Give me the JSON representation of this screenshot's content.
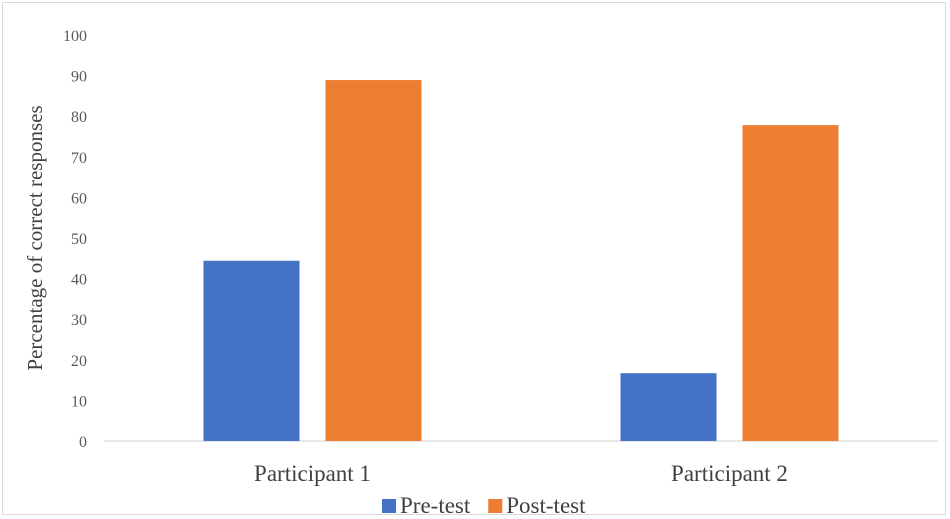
{
  "chart_data": {
    "type": "bar",
    "categories": [
      "Participant 1",
      "Participant 2"
    ],
    "series": [
      {
        "name": "Pre-test",
        "values": [
          44.4,
          16.7
        ],
        "color": "#4472C4"
      },
      {
        "name": "Post-test",
        "values": [
          88.9,
          77.8
        ],
        "color": "#ED7D31"
      }
    ],
    "xlabel": "",
    "ylabel": "Percentage of correct responses",
    "ylim": [
      0,
      100
    ],
    "yticks": [
      0,
      10,
      20,
      30,
      40,
      50,
      60,
      70,
      80,
      90,
      100
    ],
    "grid": false,
    "legend_position": "bottom",
    "axis_color": "#d9d9d9"
  }
}
